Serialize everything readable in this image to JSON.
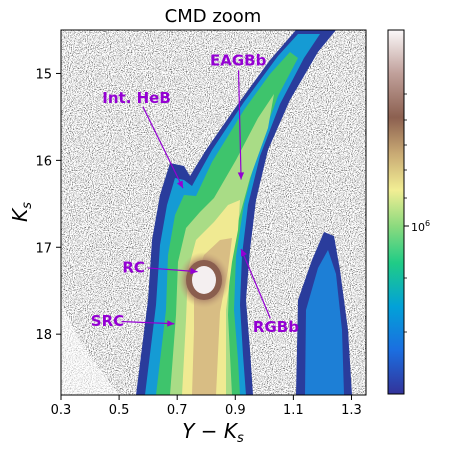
{
  "chart_data": {
    "type": "heatmap",
    "title": "CMD zoom",
    "xlabel": "Y − K",
    "xlabel_sub": "s",
    "ylabel": "K",
    "ylabel_sub": "s",
    "xlim": [
      0.3,
      1.35
    ],
    "ylim": [
      18.7,
      14.5
    ],
    "y_inverted": true,
    "x_ticks": [
      "0.3",
      "0.5",
      "0.7",
      "0.9",
      "1.1",
      "1.3"
    ],
    "x_tick_values": [
      0.3,
      0.5,
      0.7,
      0.9,
      1.1,
      1.3
    ],
    "y_ticks": [
      "15",
      "16",
      "17",
      "18"
    ],
    "y_tick_values": [
      15,
      16,
      17,
      18
    ],
    "colorbar": {
      "scale": "log",
      "colormap": "terrain",
      "tick_label_base": "10",
      "tick_label_exp": "6"
    },
    "annotations": [
      {
        "text": "Int. HeB",
        "point": [
          0.72,
          16.32
        ],
        "label_at": [
          0.56,
          15.28
        ]
      },
      {
        "text": "EAGBb",
        "point": [
          0.92,
          16.22
        ],
        "label_at": [
          0.91,
          14.85
        ]
      },
      {
        "text": "RC",
        "point": [
          0.77,
          17.28
        ],
        "label_at": [
          0.55,
          17.23
        ]
      },
      {
        "text": "SRC",
        "point": [
          0.69,
          17.88
        ],
        "label_at": [
          0.46,
          17.85
        ]
      },
      {
        "text": "RGBb",
        "point": [
          0.92,
          17.02
        ],
        "label_at": [
          1.04,
          17.92
        ]
      }
    ],
    "annotation_color": "#9400d3",
    "colors": {
      "background": "#ffffff",
      "density_low": "#2a3c9c",
      "density_mid_low": "#12a3c8",
      "density_mid": "#3ec46c",
      "density_mid_high": "#f0ea92",
      "density_high": "#8a5e4e",
      "density_peak": "#f4eff0"
    }
  }
}
